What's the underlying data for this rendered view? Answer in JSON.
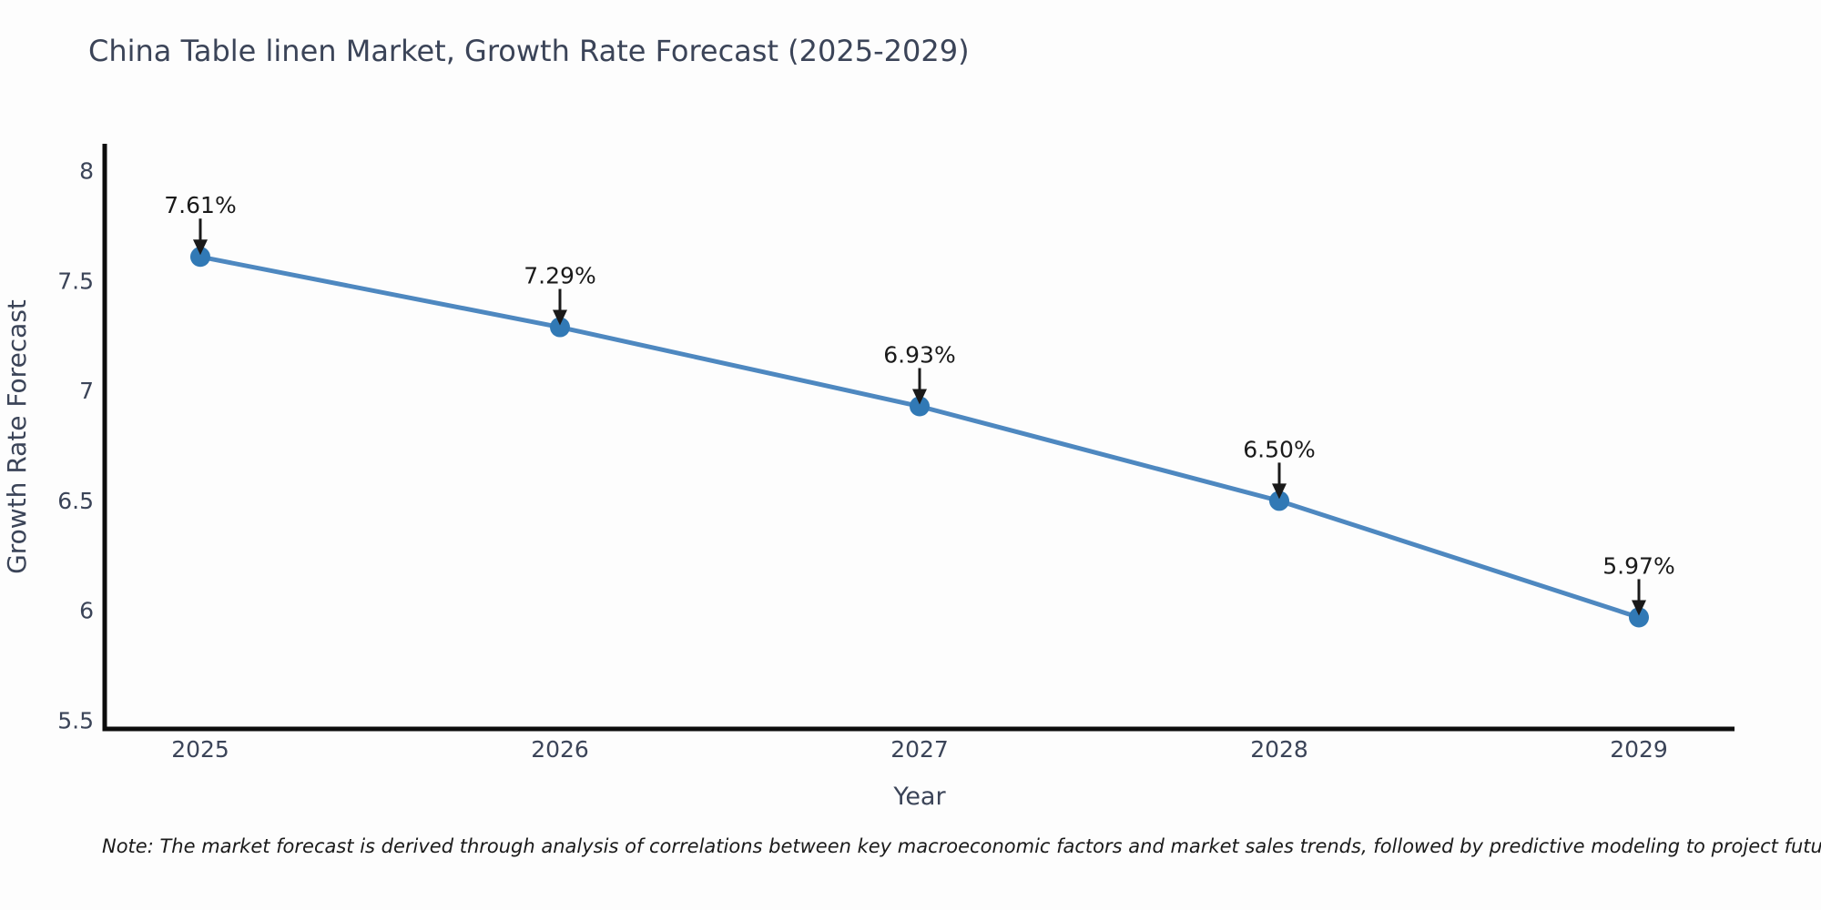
{
  "chart_data": {
    "type": "line",
    "title": "China Table linen Market, Growth Rate Forecast (2025-2029)",
    "xlabel": "Year",
    "ylabel": "Growth Rate Forecast",
    "categories": [
      "2025",
      "2026",
      "2027",
      "2028",
      "2029"
    ],
    "series": [
      {
        "name": "Growth Rate Forecast",
        "values": [
          7.61,
          7.29,
          6.93,
          6.5,
          5.97
        ]
      }
    ],
    "point_labels": [
      "7.61%",
      "7.29%",
      "6.93%",
      "6.50%",
      "5.97%"
    ],
    "yticks": [
      {
        "value": 8,
        "label": "8"
      },
      {
        "value": 7.5,
        "label": "7.5"
      },
      {
        "value": 7,
        "label": "7"
      },
      {
        "value": 6.5,
        "label": "6.5"
      },
      {
        "value": 6,
        "label": "6"
      },
      {
        "value": 5.5,
        "label": "5.5"
      }
    ],
    "ylim": [
      5.5,
      8
    ],
    "grid": false,
    "legend": "none",
    "note": "Note: The market forecast is derived through analysis of correlations between key macroeconomic factors and market sales trends, followed by predictive modeling to project future sales",
    "colors": {
      "line": "#4e88c0",
      "marker": "#3179b5",
      "axis": "#0d0d0d",
      "text": "#3b4458",
      "annotation": "#1a1a1a",
      "background": "#fdfdfd"
    }
  }
}
